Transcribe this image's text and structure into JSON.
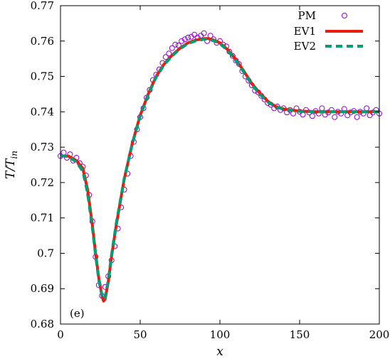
{
  "chart_data": {
    "type": "line",
    "title": "",
    "xlabel": "x",
    "ylabel_main": "T/T",
    "ylabel_sub": "in",
    "xlim": [
      0,
      200
    ],
    "ylim": [
      0.68,
      0.77
    ],
    "x_ticks": [
      "0",
      "50",
      "100",
      "150",
      "200"
    ],
    "y_ticks": [
      "0.68",
      "0.69",
      "0.7",
      "0.71",
      "0.72",
      "0.73",
      "0.74",
      "0.75",
      "0.76",
      "0.77"
    ],
    "panel_label": "(e)",
    "grid": false,
    "legend_position": "top-right",
    "colors": {
      "PM": "#9400d3",
      "EV1": "#e51e10",
      "EV2": "#009e73"
    },
    "series": [
      {
        "name": "PM",
        "style": "open-circles",
        "x": [
          0,
          2,
          4,
          6,
          8,
          10,
          12,
          14,
          16,
          18,
          20,
          22,
          24,
          26,
          28,
          30,
          32,
          34,
          36,
          38,
          40,
          42,
          44,
          46,
          48,
          50,
          52,
          54,
          56,
          58,
          60,
          62,
          64,
          66,
          68,
          70,
          72,
          74,
          76,
          78,
          80,
          82,
          84,
          86,
          88,
          90,
          92,
          94,
          96,
          98,
          100,
          102,
          104,
          106,
          108,
          110,
          112,
          114,
          116,
          118,
          120,
          122,
          124,
          126,
          128,
          130,
          132,
          134,
          136,
          138,
          140,
          142,
          144,
          146,
          148,
          150,
          152,
          154,
          156,
          158,
          160,
          162,
          164,
          166,
          168,
          170,
          172,
          174,
          176,
          178,
          180,
          182,
          184,
          186,
          188,
          190,
          192,
          194,
          196,
          198,
          200
        ],
        "y": [
          0.7275,
          0.7285,
          0.727,
          0.728,
          0.7262,
          0.727,
          0.7255,
          0.7245,
          0.722,
          0.7165,
          0.709,
          0.699,
          0.691,
          0.688,
          0.6905,
          0.6935,
          0.698,
          0.702,
          0.707,
          0.713,
          0.718,
          0.7225,
          0.7275,
          0.7315,
          0.735,
          0.7385,
          0.741,
          0.744,
          0.7462,
          0.749,
          0.7505,
          0.752,
          0.7538,
          0.7555,
          0.7565,
          0.758,
          0.759,
          0.7588,
          0.76,
          0.7605,
          0.761,
          0.7612,
          0.7618,
          0.761,
          0.7615,
          0.7622,
          0.76,
          0.7615,
          0.7605,
          0.7595,
          0.76,
          0.759,
          0.7585,
          0.757,
          0.7558,
          0.7545,
          0.7535,
          0.7515,
          0.75,
          0.7488,
          0.7475,
          0.746,
          0.7455,
          0.7445,
          0.7435,
          0.7425,
          0.742,
          0.741,
          0.7415,
          0.7405,
          0.741,
          0.7398,
          0.7405,
          0.7395,
          0.741,
          0.74,
          0.7392,
          0.7405,
          0.7398,
          0.7388,
          0.7402,
          0.7395,
          0.741,
          0.7392,
          0.7398,
          0.7405,
          0.7385,
          0.74,
          0.7395,
          0.7408,
          0.739,
          0.7398,
          0.7402,
          0.7385,
          0.74,
          0.7395,
          0.741,
          0.739,
          0.7398,
          0.7405,
          0.7395
        ]
      },
      {
        "name": "EV1",
        "style": "solid",
        "x": [
          0,
          5,
          10,
          14,
          17,
          20,
          22,
          24,
          26,
          27,
          28,
          30,
          32,
          35,
          40,
          45,
          50,
          55,
          60,
          65,
          70,
          75,
          80,
          85,
          90,
          93,
          96,
          100,
          105,
          110,
          115,
          120,
          125,
          130,
          135,
          140,
          150,
          160,
          170,
          180,
          190,
          200
        ],
        "y": [
          0.7275,
          0.7275,
          0.7262,
          0.724,
          0.718,
          0.708,
          0.7,
          0.693,
          0.688,
          0.6865,
          0.687,
          0.692,
          0.699,
          0.708,
          0.721,
          0.731,
          0.739,
          0.745,
          0.75,
          0.7535,
          0.756,
          0.758,
          0.7595,
          0.7603,
          0.7607,
          0.7607,
          0.7603,
          0.7595,
          0.7575,
          0.7548,
          0.7515,
          0.748,
          0.7453,
          0.743,
          0.7415,
          0.7408,
          0.7402,
          0.74,
          0.74,
          0.74,
          0.74,
          0.74
        ]
      },
      {
        "name": "EV2",
        "style": "dashed",
        "x": [
          0,
          5,
          10,
          14,
          17,
          20,
          22,
          24,
          26,
          27,
          28,
          30,
          32,
          35,
          40,
          45,
          50,
          55,
          60,
          65,
          70,
          75,
          80,
          85,
          90,
          93,
          96,
          100,
          105,
          110,
          115,
          120,
          125,
          130,
          135,
          140,
          150,
          160,
          170,
          180,
          190,
          200
        ],
        "y": [
          0.7277,
          0.7273,
          0.7258,
          0.7232,
          0.717,
          0.7072,
          0.6995,
          0.6925,
          0.6882,
          0.687,
          0.6875,
          0.6925,
          0.6995,
          0.7085,
          0.7212,
          0.7308,
          0.7388,
          0.7448,
          0.7498,
          0.7533,
          0.7558,
          0.7578,
          0.7593,
          0.7601,
          0.7605,
          0.7605,
          0.7601,
          0.7593,
          0.7573,
          0.7545,
          0.7512,
          0.7477,
          0.745,
          0.7428,
          0.7414,
          0.7407,
          0.7401,
          0.74,
          0.74,
          0.74,
          0.74,
          0.74
        ]
      }
    ]
  }
}
